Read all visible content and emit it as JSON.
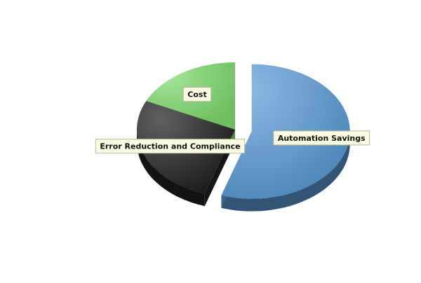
{
  "chart_data": {
    "type": "pie",
    "title": "",
    "slices": [
      {
        "label": "Automation Savings",
        "value": 55,
        "color": "#5b9bd5",
        "exploded": true
      },
      {
        "label": "Error Reduction and Compliance",
        "value": 27,
        "color": "#222222",
        "exploded": false
      },
      {
        "label": "Cost",
        "value": 18,
        "color": "#7ed96e",
        "exploded": false
      }
    ],
    "label_style": {
      "background": "#fbfbe4",
      "border": "#b9b99a"
    }
  }
}
